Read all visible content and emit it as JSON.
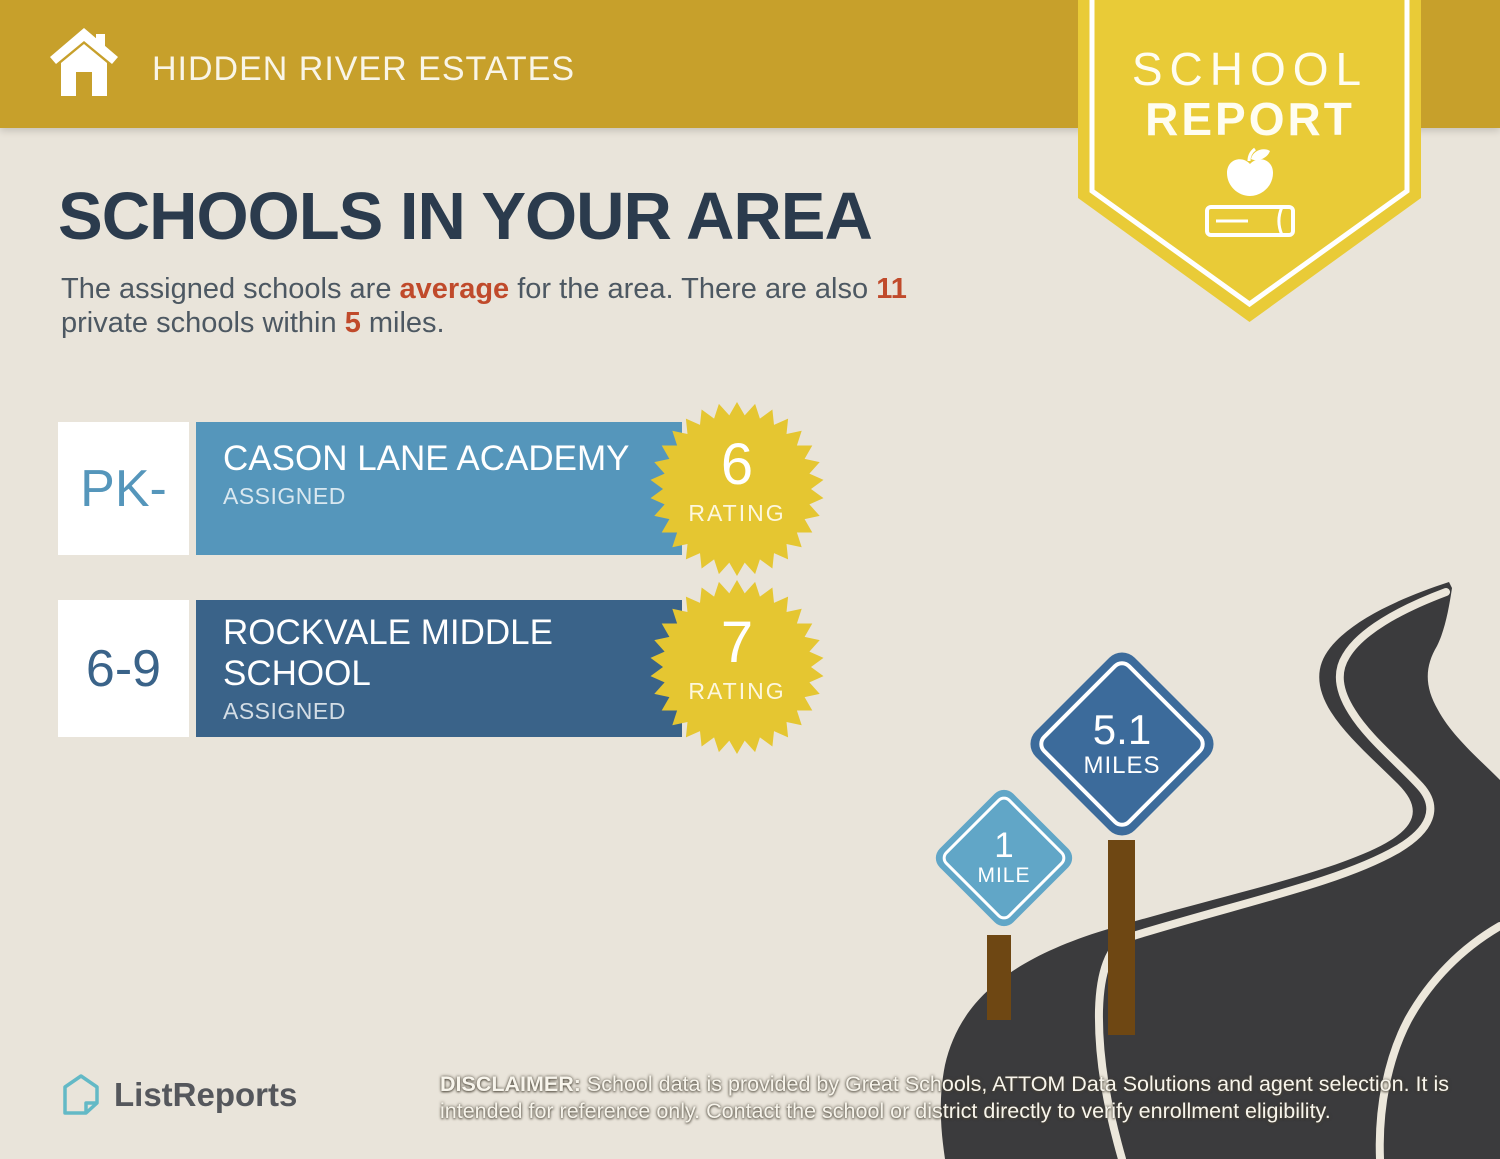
{
  "colors": {
    "bg": "#e9e4da",
    "gold": "#c7a02b",
    "badge-yellow": "#e9cb37",
    "navy": "#2b3b4d",
    "body": "#4d5862",
    "accent": "#c04a2b",
    "blue1": "#5596bb",
    "blue2": "#3a6389",
    "star-yellow": "#e5c631",
    "road": "#3b3b3d",
    "road-line": "#ece7db",
    "post-brown": "#6e4713",
    "sign-blue1": "#61a6c7",
    "sign-blue2": "#3c6b9b",
    "logo-teal": "#63b9c6",
    "logo-text": "#55575c"
  },
  "header": {
    "property_name": "HIDDEN RIVER ESTATES"
  },
  "report_badge": {
    "line1": "SCHOOL",
    "line2": "REPORT"
  },
  "page": {
    "title": "SCHOOLS IN YOUR AREA"
  },
  "intro": {
    "segment1": "The assigned schools are ",
    "highlight1": "average",
    "segment2": " for the area. There are also ",
    "highlight2": "11",
    "segment3": "private schools within ",
    "highlight3": "5",
    "segment4": " miles."
  },
  "schools": [
    {
      "grades": "PK-",
      "name": "CASON LANE ACADEMY",
      "status": "ASSIGNED",
      "rating": "6",
      "rating_label": "RATING",
      "distance_value": "1",
      "distance_unit": "MILE"
    },
    {
      "grades": "6-9",
      "name": "ROCKVALE MIDDLE SCHOOL",
      "status": "ASSIGNED",
      "rating": "7",
      "rating_label": "RATING",
      "distance_value": "5.1",
      "distance_unit": "MILES"
    }
  ],
  "footer": {
    "brand": "ListReports",
    "disclaimer_label": "DISCLAIMER:",
    "disclaimer_text": "School data is provided by Great Schools, ATTOM Data Solutions and agent selection. It is intended for reference only. Contact the school or district directly to verify enrollment eligibility."
  }
}
